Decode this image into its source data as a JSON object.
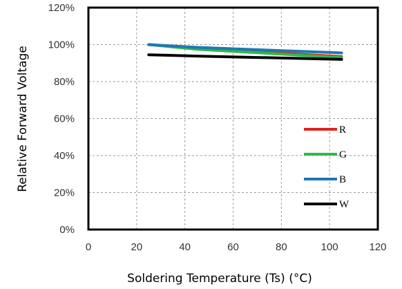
{
  "chart_data": {
    "type": "line",
    "title": "",
    "xlabel": "Soldering Temperature (Ts) (°C)",
    "ylabel": "Relative Forward Voltage",
    "xlim": [
      0,
      120
    ],
    "ylim": [
      0,
      120
    ],
    "x_ticks": [
      0,
      20,
      40,
      60,
      80,
      100,
      120
    ],
    "x_tick_labels": [
      "0",
      "20",
      "40",
      "60",
      "80",
      "100",
      "120"
    ],
    "y_ticks": [
      0,
      20,
      40,
      60,
      80,
      100,
      120
    ],
    "y_tick_labels": [
      "0%",
      "20%",
      "40%",
      "60%",
      "80%",
      "100%",
      "120%"
    ],
    "grid": true,
    "legend_position": "bottom-right",
    "series": [
      {
        "name": "R",
        "color": "#e02020",
        "x": [
          25,
          45,
          65,
          85,
          105
        ],
        "y": [
          100,
          98,
          96.5,
          95,
          93.5
        ]
      },
      {
        "name": "G",
        "color": "#2db84a",
        "x": [
          25,
          45,
          65,
          85,
          105
        ],
        "y": [
          100,
          97.5,
          96,
          94.5,
          93
        ]
      },
      {
        "name": "B",
        "color": "#1f78b4",
        "x": [
          25,
          45,
          65,
          85,
          105
        ],
        "y": [
          100,
          98.5,
          97.5,
          96.5,
          95.5
        ]
      },
      {
        "name": "W",
        "color": "#000000",
        "x": [
          25,
          45,
          65,
          85,
          105
        ],
        "y": [
          94.5,
          93.8,
          93.2,
          92.6,
          92
        ]
      }
    ]
  }
}
